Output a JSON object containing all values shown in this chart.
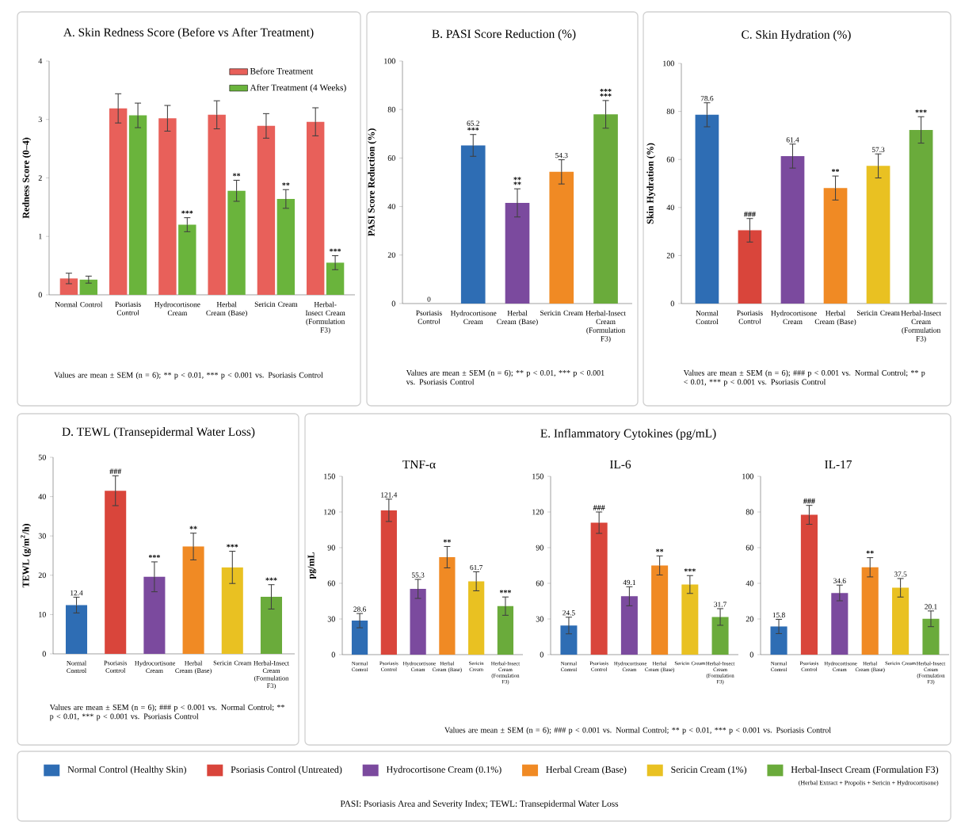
{
  "chart_data": [
    {
      "type": "bar",
      "title": "A. Skin Redness Score (Before vs After Treatment)",
      "ylabel": "Redness Score (0–4)",
      "categories": [
        "Normal Control",
        "Psoriasis Control",
        "Hydrocortisone Cream",
        "Herbal Cream (Base)",
        "Sericin Cream",
        "Herbal-Insect Cream (Formulation F3)"
      ],
      "series": [
        {
          "name": "Before Treatment",
          "color": "#e8605a",
          "values": [
            0.28,
            3.19,
            3.02,
            3.08,
            2.89,
            2.96
          ],
          "errors": [
            0.09,
            0.25,
            0.22,
            0.24,
            0.21,
            0.24
          ]
        },
        {
          "name": "After Treatment (4 Weeks)",
          "color": "#6ab43c",
          "values": [
            0.26,
            3.07,
            1.2,
            1.78,
            1.64,
            0.55
          ],
          "errors": [
            0.06,
            0.21,
            0.12,
            0.18,
            0.16,
            0.12
          ]
        }
      ],
      "ylim": [
        0,
        4
      ],
      "yticks": [
        0,
        1,
        2,
        3,
        4
      ],
      "legend": "top right",
      "annotations": [
        {
          "text": "***",
          "x": "Hydrocortisone Cream",
          "y": 1.2
        },
        {
          "text": "**",
          "x": "Herbal Cream (Base)",
          "y": 1.78
        },
        {
          "text": "**",
          "x": "Sericin Cream",
          "y": 1.64
        },
        {
          "text": "***",
          "x": "Herbal-Insect Cream (Formulation F3)",
          "y": 0.55
        },
        "Values are mean ± SEM (n = 6); ** p < 0.01, *** p < 0.001 vs. Psoriasis Control"
      ]
    },
    {
      "type": "bar",
      "title": "B. PASI Score Reduction (%)",
      "ylabel": "PASI Score Reduction (%)",
      "categories": [
        "Psoriasis Control",
        "Hydrocortisone Cream",
        "Herbal Cream (Base)",
        "Sericin Cream",
        "Herbal-Insect Cream (Formulation F3)"
      ],
      "values": [
        0,
        65.2,
        41.5,
        54.3,
        78
      ],
      "errors": [
        null,
        4.5,
        5.8,
        5,
        5.7
      ],
      "value_labels": [
        "0",
        "65.2",
        null,
        "54.3",
        null
      ],
      "colors": [
        "#d9453b",
        "#2e6db4",
        "#7b4a9e",
        "#f08a24",
        "#6aab3b"
      ],
      "ylim": [
        0,
        100
      ],
      "yticks": [
        0,
        20,
        40,
        60,
        80,
        100
      ],
      "annotations": [
        {
          "text": "***",
          "x": "Hydrocortisone Cream",
          "y": 65.2
        },
        {
          "text": "**",
          "x": "Herbal Cream (Base)",
          "y": 41.5
        },
        {
          "text": "**",
          "x": "Herbal Cream (Base)",
          "y": 41.5
        },
        {
          "text": "***",
          "x": "Herbal-Insect Cream (Formulation F3)",
          "y": 78
        },
        {
          "text": "***",
          "x": "Herbal-Insect Cream (Formulation F3)",
          "y": 78
        },
        "Values are mean ± SEM (n = 6); ** p < 0.01, *** p < 0.001 vs. Psoriasis Control"
      ]
    },
    {
      "type": "bar",
      "title": "C. Skin Hydration (%)",
      "ylabel": "Skin Hydration (%)",
      "categories": [
        "Normal Control",
        "Psoriasis Control",
        "Hydrocortisone Cream",
        "Herbal Cream (Base)",
        "Sericin Cream",
        "Herbal-Insect Cream (Formulation F3)"
      ],
      "values": [
        78.6,
        30.5,
        61.4,
        48.1,
        57.3,
        72.3
      ],
      "errors": [
        5,
        4.9,
        5,
        5,
        5,
        5.5
      ],
      "value_labels": [
        "78.6",
        null,
        "61.4",
        null,
        "57.3",
        null
      ],
      "colors": [
        "#2e6db4",
        "#d9453b",
        "#7b4a9e",
        "#f08a24",
        "#e9c122",
        "#6aab3b"
      ],
      "ylim": [
        0,
        100
      ],
      "yticks": [
        0,
        20,
        40,
        60,
        80,
        100
      ],
      "annotations": [
        {
          "text": "###",
          "x": "Psoriasis Control",
          "y": 30.5
        },
        {
          "text": "**",
          "x": "Herbal Cream (Base)",
          "y": 48.1
        },
        {
          "text": "***",
          "x": "Herbal-Insect Cream (Formulation F3)",
          "y": 72.3
        },
        "Values are mean ± SEM (n = 6); ### p < 0.001 vs. Normal Control; ** p < 0.01, *** p < 0.001 vs. Psoriasis Control"
      ]
    },
    {
      "type": "bar",
      "title": "D. TEWL (Transepidermal Water Loss)",
      "ylabel": "TEWL (g/m$^{2}$/h)",
      "categories": [
        "Normal Control",
        "Psoriasis Control",
        "Hydrocortisone Cream",
        "Herbal Cream (Base)",
        "Sericin Cream",
        "Herbal-Insect Cream (Formulation F3)"
      ],
      "values": [
        12.4,
        41.5,
        19.6,
        27.3,
        22,
        14.5
      ],
      "errors": [
        2,
        3.8,
        3.8,
        3.4,
        4.1,
        3.1
      ],
      "value_labels": [
        "12.4",
        null,
        null,
        null,
        null,
        null
      ],
      "colors": [
        "#2e6db4",
        "#d9453b",
        "#7b4a9e",
        "#f08a24",
        "#e9c122",
        "#6aab3b"
      ],
      "ylim": [
        0,
        50
      ],
      "yticks": [
        0,
        10,
        20,
        30,
        40,
        50
      ],
      "annotations": [
        {
          "text": "###",
          "x": "Psoriasis Control",
          "y": 41.5
        },
        {
          "text": "***",
          "x": "Hydrocortisone Cream",
          "y": 19.6
        },
        {
          "text": "**",
          "x": "Herbal Cream (Base)",
          "y": 27.3
        },
        {
          "text": "***",
          "x": "Sericin Cream",
          "y": 22
        },
        {
          "text": "***",
          "x": "Herbal-Insect Cream (Formulation F3)",
          "y": 14.5
        },
        "Values are mean ± SEM (n = 6); ### p < 0.001 vs. Normal Control; ** p < 0.01, *** p < 0.001 vs. Psoriasis Control"
      ]
    },
    {
      "type": "bar",
      "title": "TNF-α",
      "ylabel": "pg/mL",
      "categories": [
        "Normal Control",
        "Psoriasis Control",
        "Hydrocortisone Cream",
        "Herbal Cream (Base)",
        "Sericin Cream",
        "Herbal-Insect Cream (Formulation F3)"
      ],
      "values": [
        28.6,
        121.4,
        55.3,
        82,
        61.7,
        40.8
      ],
      "errors": [
        6,
        9.4,
        8,
        9,
        8,
        7.7
      ],
      "value_labels": [
        "28.6",
        "121.4",
        "55.3",
        null,
        "61.7",
        null
      ],
      "colors": [
        "#2e6db4",
        "#d9453b",
        "#7b4a9e",
        "#f08a24",
        "#e9c122",
        "#6aab3b"
      ],
      "ylim": [
        0,
        150
      ],
      "yticks": [
        0,
        30,
        60,
        90,
        120,
        150
      ],
      "annotations": [
        {
          "text": "**",
          "x": "Herbal Cream (Base)",
          "y": 82
        },
        {
          "text": "***",
          "x": "Herbal-Insect Cream (Formulation F3)",
          "y": 40.8
        }
      ]
    },
    {
      "type": "bar",
      "title": "IL-6",
      "categories": [
        "Normal Control",
        "Psoriasis Control",
        "Hydrocortisone Cream",
        "Herbal Cream (Base)",
        "Sericin Cream",
        "Herbal-Insect Cream (Formulation F3)"
      ],
      "values": [
        24.5,
        111,
        49.1,
        75,
        59,
        31.7
      ],
      "errors": [
        7,
        9,
        8,
        8,
        7.5,
        7
      ],
      "value_labels": [
        "24.5",
        null,
        "49.1",
        null,
        null,
        "31.7"
      ],
      "colors": [
        "#2e6db4",
        "#d9453b",
        "#7b4a9e",
        "#f08a24",
        "#e9c122",
        "#6aab3b"
      ],
      "ylim": [
        0,
        150
      ],
      "yticks": [
        0,
        30,
        60,
        90,
        120,
        150
      ],
      "annotations": [
        {
          "text": "###",
          "x": "Psoriasis Control",
          "y": 111
        },
        {
          "text": "**",
          "x": "Herbal Cream (Base)",
          "y": 75
        },
        {
          "text": "***",
          "x": "Sericin Cream",
          "y": 59
        }
      ]
    },
    {
      "type": "bar",
      "title": "IL-17",
      "categories": [
        "Normal Control",
        "Psoriasis Control",
        "Hydrocortisone Cream",
        "Herbal Cream (Base)",
        "Sericin Cream",
        "Herbal-Insect Cream (Formulation F3)"
      ],
      "values": [
        15.8,
        78.4,
        34.6,
        49,
        37.5,
        20.1
      ],
      "errors": [
        4,
        5.3,
        4.4,
        5.4,
        5.2,
        4.4
      ],
      "value_labels": [
        "15.8",
        null,
        "34.6",
        null,
        "37.5",
        "20.1"
      ],
      "colors": [
        "#2e6db4",
        "#d9453b",
        "#7b4a9e",
        "#f08a24",
        "#e9c122",
        "#6aab3b"
      ],
      "ylim": [
        0,
        100
      ],
      "yticks": [
        0,
        20,
        40,
        60,
        80,
        100
      ],
      "annotations": [
        {
          "text": "###",
          "x": "Psoriasis Control",
          "y": 78.4
        },
        {
          "text": "**",
          "x": "Herbal Cream (Base)",
          "y": 49
        }
      ]
    },
    {
      "type": "other",
      "title": "E. Inflammatory Cytokines (pg/mL)",
      "annotations": [
        "Values are mean ± SEM (n = 6); ### p < 0.001 vs. Normal Control; ** p < 0.01, *** p < 0.001 vs. Psoriasis Control"
      ]
    },
    {
      "type": "other",
      "categories": [
        "Normal Control (Healthy Skin)",
        "Psoriasis Control (Untreated)",
        "Hydrocortisone Cream (0.1%)",
        "Herbal Cream (Base)",
        "Sericin Cream (1%)",
        "Herbal-Insect Cream (Formulation F3)"
      ],
      "colors": [
        "#2e6db4",
        "#d9453b",
        "#7b4a9e",
        "#f08a24",
        "#e9c122",
        "#6aab3b"
      ],
      "annotations": [
        "(Herbal Extract + Propolis + Sericin + Hydrocortisone)",
        "PASI: Psoriasis Area and Severity Index; TEWL: Transepidermal Water Loss"
      ]
    }
  ]
}
